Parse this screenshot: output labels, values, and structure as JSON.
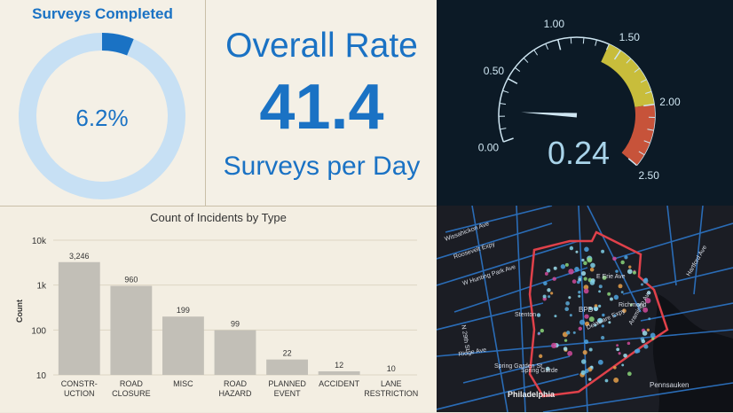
{
  "surveys": {
    "title": "Surveys Completed",
    "percent_label": "6.2%",
    "percent_value": 6.2,
    "colors": {
      "ring": "#c7e0f4",
      "fill": "#1a72c4",
      "text": "#1a72c4"
    }
  },
  "rate": {
    "title": "Overall Rate",
    "value": "41.4",
    "unit": "Surveys per Day"
  },
  "gauge": {
    "value_label": "0.24",
    "value": 0.24,
    "min": 0,
    "max": 2.5,
    "tick_labels": [
      "0.00",
      "0.50",
      "1.00",
      "1.50",
      "2.00",
      "2.50"
    ],
    "bands": [
      {
        "from": 1.4,
        "to": 2.0,
        "color": "#c8bd3b"
      },
      {
        "from": 2.0,
        "to": 2.5,
        "color": "#c7533a"
      }
    ]
  },
  "chart_data": {
    "type": "bar",
    "title": "Count of Incidents by Type",
    "ylabel": "Count",
    "xlabel": "",
    "yscale": "log",
    "ylim": [
      10,
      10000
    ],
    "ytick_labels": [
      "10k",
      "1k",
      "100",
      "10"
    ],
    "categories": [
      "CONSTR-\nUCTION",
      "ROAD\nCLOSURE",
      "MISC",
      "ROAD\nHAZARD",
      "PLANNED\nEVENT",
      "ACCIDENT",
      "LANE\nRESTRICTION"
    ],
    "values": [
      3246,
      960,
      199,
      99,
      22,
      12,
      10
    ],
    "value_labels": [
      "3,246",
      "960",
      "199",
      "99",
      "22",
      "12",
      "10"
    ],
    "colors": {
      "bar": "#c2bfb7",
      "grid": "#ddd6c4"
    },
    "grid": true
  },
  "map": {
    "labels": [
      "Wissahickon Ave",
      "Roosevelt Expy",
      "W Hunting Park Ave",
      "N 29th St",
      "Ridge Ave",
      "Spring Garden St",
      "Philadelphia",
      "Pennsauken",
      "Richmond",
      "E Erie Ave",
      "Aramingo Ave",
      "Hartford Ave",
      "Stenton",
      "Delaware Expy",
      "Spring Garde",
      "BPD"
    ],
    "colors": {
      "background": "#1b1d24",
      "road": "#2a6cb6",
      "boundary": "#e0414a",
      "water": "#0f1116"
    }
  }
}
